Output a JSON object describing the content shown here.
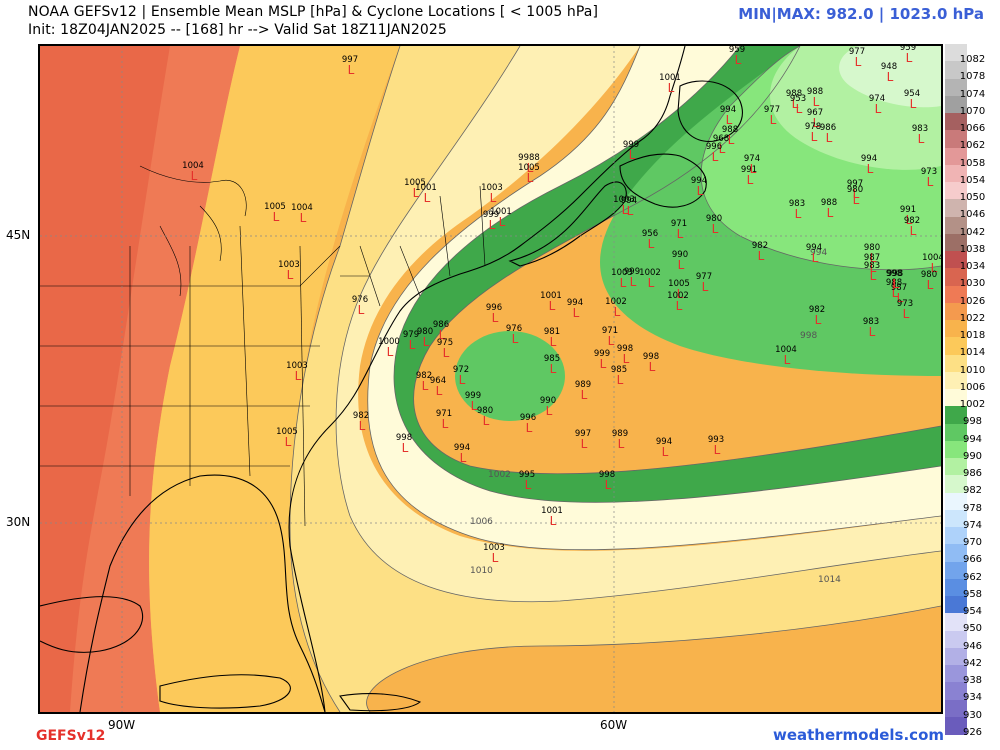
{
  "header": {
    "title_line1": "NOAA GEFSv12 | Ensemble Mean MSLP [hPa] & Cyclone Locations [ < 1005 hPa]",
    "title_line2": "Init: 18Z04JAN2025 -- [168] hr --> Valid Sat 18Z11JAN2025",
    "minmax": "MIN|MAX: 982.0 | 1023.0 hPa"
  },
  "footer": {
    "model": "GEFSv12",
    "site": "weathermodels.com"
  },
  "axes": {
    "lat_labels": [
      "45N",
      "30N"
    ],
    "lon_labels": [
      "90W",
      "60W"
    ]
  },
  "contour_labels": [
    "1014",
    "1010",
    "1006",
    "1002",
    "998",
    "994"
  ],
  "colorbar": {
    "labels": [
      "1082",
      "1078",
      "1074",
      "1070",
      "1066",
      "1062",
      "1058",
      "1054",
      "1050",
      "1046",
      "1042",
      "1038",
      "1034",
      "1030",
      "1026",
      "1022",
      "1018",
      "1014",
      "1010",
      "1006",
      "1002",
      "998",
      "994",
      "990",
      "986",
      "982",
      "978",
      "974",
      "970",
      "966",
      "962",
      "958",
      "954",
      "950",
      "946",
      "942",
      "938",
      "934",
      "930",
      "926"
    ],
    "colors": [
      "#dcdcdc",
      "#c8c8c8",
      "#b4b4b4",
      "#a0a0a0",
      "#a56060",
      "#c97a7a",
      "#e39898",
      "#f0b4b4",
      "#f6cccc",
      "#cfb4ae",
      "#b39187",
      "#9c6f66",
      "#c05050",
      "#d96550",
      "#ef7a55",
      "#f49a4e",
      "#f8b34c",
      "#fcc95a",
      "#fde085",
      "#fef0b4",
      "#fffbd9",
      "#3fa84a",
      "#5fc863",
      "#87e67c",
      "#b2f1a2",
      "#d6f8cc",
      "#eaf6fe",
      "#cce6fc",
      "#aed2fa",
      "#90bcf4",
      "#72a4ec",
      "#5a8ee2",
      "#4a78d6",
      "#e2e2f8",
      "#cacaf0",
      "#b2b0e6",
      "#9a96dc",
      "#8a82d2",
      "#7a6ec6",
      "#6a5cbc"
    ]
  },
  "cyclones": [
    {
      "label": "997"
    },
    {
      "label": "1004"
    },
    {
      "label": "1005"
    },
    {
      "label": "1004"
    },
    {
      "label": "1003"
    },
    {
      "label": "976"
    },
    {
      "label": "1003"
    },
    {
      "label": "1005"
    },
    {
      "label": "982"
    },
    {
      "label": "998"
    },
    {
      "label": "1000"
    },
    {
      "label": "979"
    },
    {
      "label": "980"
    },
    {
      "label": "986"
    },
    {
      "label": "975"
    },
    {
      "label": "982"
    },
    {
      "label": "964"
    },
    {
      "label": "972"
    },
    {
      "label": "971"
    },
    {
      "label": "999"
    },
    {
      "label": "980"
    },
    {
      "label": "994"
    },
    {
      "label": "996"
    },
    {
      "label": "976"
    },
    {
      "label": "1001"
    },
    {
      "label": "981"
    },
    {
      "label": "985"
    },
    {
      "label": "989"
    },
    {
      "label": "990"
    },
    {
      "label": "996"
    },
    {
      "label": "997"
    },
    {
      "label": "994"
    },
    {
      "label": "1002"
    },
    {
      "label": "971"
    },
    {
      "label": "999"
    },
    {
      "label": "998"
    },
    {
      "label": "985"
    },
    {
      "label": "998"
    },
    {
      "label": "989"
    },
    {
      "label": "994"
    },
    {
      "label": "993"
    },
    {
      "label": "995"
    },
    {
      "label": "998"
    },
    {
      "label": "1001"
    },
    {
      "label": "1003"
    },
    {
      "label": "1005"
    },
    {
      "label": "1001"
    },
    {
      "label": "1003"
    },
    {
      "label": "999"
    },
    {
      "label": "1001"
    },
    {
      "label": "9988"
    },
    {
      "label": "1005"
    },
    {
      "label": "1003"
    },
    {
      "label": "999"
    },
    {
      "label": "1001"
    },
    {
      "label": "971"
    },
    {
      "label": "994"
    },
    {
      "label": "956"
    },
    {
      "label": "990"
    },
    {
      "label": "1003"
    },
    {
      "label": "999"
    },
    {
      "label": "1002"
    },
    {
      "label": "1005"
    },
    {
      "label": "1002"
    },
    {
      "label": "977"
    },
    {
      "label": "994"
    },
    {
      "label": "980"
    },
    {
      "label": "991"
    },
    {
      "label": "959"
    },
    {
      "label": "994"
    },
    {
      "label": "968"
    },
    {
      "label": "996"
    },
    {
      "label": "988"
    },
    {
      "label": "977"
    },
    {
      "label": "988"
    },
    {
      "label": "953"
    },
    {
      "label": "967"
    },
    {
      "label": "978"
    },
    {
      "label": "986"
    },
    {
      "label": "988"
    },
    {
      "label": "977"
    },
    {
      "label": "959"
    },
    {
      "label": "948"
    },
    {
      "label": "974"
    },
    {
      "label": "954"
    },
    {
      "label": "983"
    },
    {
      "label": "974"
    },
    {
      "label": "994"
    },
    {
      "label": "997"
    },
    {
      "label": "980"
    },
    {
      "label": "983"
    },
    {
      "label": "988"
    },
    {
      "label": "973"
    },
    {
      "label": "991"
    },
    {
      "label": "982"
    },
    {
      "label": "982"
    },
    {
      "label": "994"
    },
    {
      "label": "980"
    },
    {
      "label": "987"
    },
    {
      "label": "983"
    },
    {
      "label": "998"
    },
    {
      "label": "988"
    },
    {
      "label": "987"
    },
    {
      "label": "973"
    },
    {
      "label": "1004"
    },
    {
      "label": "980"
    },
    {
      "label": "982"
    },
    {
      "label": "983"
    },
    {
      "label": "1004"
    },
    {
      "label": "998"
    }
  ]
}
